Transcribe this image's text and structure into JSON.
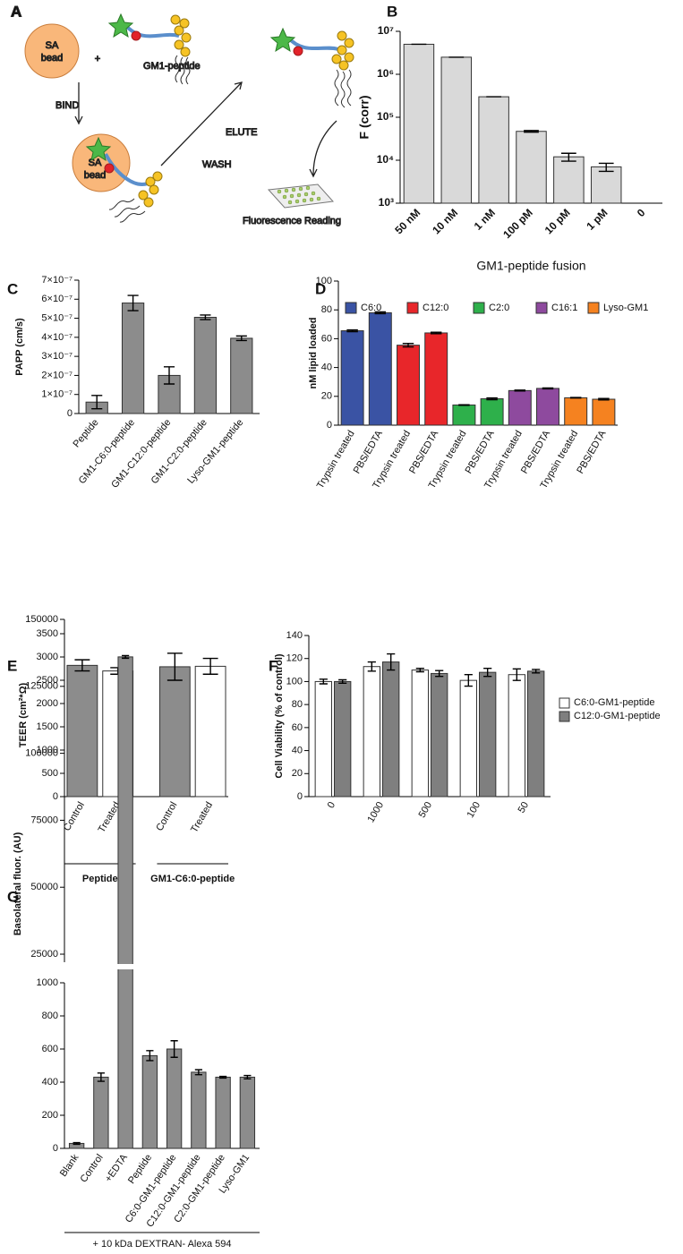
{
  "diagram": {
    "panel": "A",
    "bead_label": [
      "SA",
      "bead"
    ],
    "plus": "+",
    "fusion_label": "GM1-peptide",
    "bind": "BIND",
    "elute": "ELUTE",
    "wash": "WASH",
    "reading": "Fluorescence Reading"
  },
  "chart_data": [
    {
      "panel": "B",
      "type": "bar",
      "log_scale": true,
      "categories": [
        "50 nM",
        "10 nM",
        "1 nM",
        "100 pM",
        "10 pM",
        "1 pM",
        "0"
      ],
      "values": [
        5000000,
        2500000,
        300000,
        47000,
        12000,
        7000,
        null
      ],
      "errors": [
        0,
        0,
        0,
        2000,
        2500,
        1500,
        null
      ],
      "color": "#d9d9d9",
      "ylim": [
        1000,
        10000000
      ],
      "yticks": [
        {
          "value": 1000,
          "label": "10³"
        },
        {
          "value": 10000,
          "label": "10⁴"
        },
        {
          "value": 100000,
          "label": "10⁵"
        },
        {
          "value": 1000000,
          "label": "10⁶"
        },
        {
          "value": 10000000,
          "label": "10⁷"
        }
      ],
      "ylabel": "F (corr)",
      "xlabel": "GM1-peptide fusion"
    },
    {
      "panel": "C",
      "type": "bar",
      "categories": [
        "Peptide",
        "GM1-C6:0-peptide",
        "GM1-C12:0-peptide",
        "GM1-C2:0-peptide",
        "Lyso-GM1-peptide"
      ],
      "values": [
        6e-08,
        5.8e-07,
        2e-07,
        5.05e-07,
        3.95e-07
      ],
      "errors": [
        3.5e-08,
        4e-08,
        4.5e-08,
        1.2e-08,
        1.2e-08
      ],
      "color": "#8c8c8c",
      "ylim": [
        0,
        7e-07
      ],
      "yticks": [
        0,
        {
          "value": 1e-07,
          "label": "1×10⁻⁷"
        },
        {
          "value": 2e-07,
          "label": "2×10⁻⁷"
        },
        {
          "value": 3e-07,
          "label": "3×10⁻⁷"
        },
        {
          "value": 4e-07,
          "label": "4×10⁻⁷"
        },
        {
          "value": 5e-07,
          "label": "5×10⁻⁷"
        },
        {
          "value": 6e-07,
          "label": "6×10⁻⁷"
        },
        {
          "value": 7e-07,
          "label": "7×10⁻⁷"
        }
      ],
      "ylabel": "PAPP (cm/s)"
    },
    {
      "panel": "D",
      "type": "grouped_bar",
      "outer": "series",
      "legend": "top",
      "categories": [
        "Trypsin treated",
        "PBS/EDTA"
      ],
      "series": [
        {
          "name": "C6:0",
          "color": "#3a53a4",
          "values": [
            65.5,
            78
          ],
          "errors": [
            0.6,
            0.6
          ]
        },
        {
          "name": "C12:0",
          "color": "#e8262a",
          "values": [
            55.5,
            64
          ],
          "errors": [
            1.2,
            0.5
          ]
        },
        {
          "name": "C2:0",
          "color": "#2eb04b",
          "values": [
            14,
            18.3
          ],
          "errors": [
            0.2,
            0.6
          ]
        },
        {
          "name": "C16:1",
          "color": "#8e4a9e",
          "values": [
            24,
            25.5
          ],
          "errors": [
            0.3,
            0.3
          ]
        },
        {
          "name": "Lyso-GM1",
          "color": "#f58220",
          "values": [
            19,
            18
          ],
          "errors": [
            0.2,
            0.5
          ]
        }
      ],
      "ylim": [
        0,
        100
      ],
      "yticks": [
        0,
        20,
        40,
        60,
        80,
        100
      ],
      "ylabel": "nM lipid loaded"
    },
    {
      "panel": "E",
      "type": "grouped_bar",
      "outer": "series",
      "categories": [
        "Control",
        "Treated"
      ],
      "colors": [
        "#8c8c8c",
        "#ffffff"
      ],
      "groups": [
        "Peptide",
        "GM1-C6:0-peptide"
      ],
      "series": [
        {
          "values": [
            2820,
            2700
          ],
          "errors": [
            120,
            70
          ]
        },
        {
          "values": [
            2790,
            2800
          ],
          "errors": [
            290,
            170
          ]
        }
      ],
      "ylim": [
        0,
        3500
      ],
      "yticks": [
        0,
        500,
        1000,
        1500,
        2000,
        2500,
        3000,
        3500
      ],
      "ylabel": "TEER (cm²*Ω)"
    },
    {
      "panel": "F",
      "type": "grouped_bar",
      "outer": "categories",
      "legend": "right",
      "categories": [
        "0",
        "1000",
        "500",
        "100",
        "50"
      ],
      "series": [
        {
          "name": "C6:0-GM1-peptide",
          "color": "#ffffff",
          "values": [
            100,
            113,
            110,
            101,
            106
          ],
          "errors": [
            2,
            4,
            1.5,
            5,
            5
          ]
        },
        {
          "name": "C12:0-GM1-peptide",
          "color": "#7f7f7f",
          "values": [
            100,
            117,
            107,
            108,
            109
          ],
          "errors": [
            1.5,
            7,
            2.5,
            3.5,
            1.5
          ]
        }
      ],
      "ylim": [
        0,
        140
      ],
      "yticks": [
        0,
        20,
        40,
        60,
        80,
        100,
        120,
        140
      ],
      "ylabel": "Cell Viability (% of control)"
    },
    {
      "panel": "G",
      "type": "broken_bar",
      "categories": [
        "Blank",
        "Control",
        "+EDTA",
        "Peptide",
        "C6:0-GM1-peptide",
        "C12:0-GM1-peptide",
        "C2:0-GM1-peptide",
        "Lyso-GM1"
      ],
      "values": [
        30,
        430,
        136000,
        560,
        600,
        460,
        430,
        430
      ],
      "errors": [
        5,
        25,
        500,
        30,
        50,
        15,
        5,
        10
      ],
      "color": "#8c8c8c",
      "segments": [
        {
          "ylim": [
            0,
            1000
          ],
          "yticks": [
            0,
            200,
            400,
            600,
            800,
            1000
          ]
        },
        {
          "ylim": [
            22000,
            150000
          ],
          "yticks": [
            25000,
            50000,
            75000,
            100000,
            125000,
            150000
          ]
        }
      ],
      "ylabel": "Basolateral fluor. (AU)",
      "footer": "+ 10 kDa DEXTRAN- Alexa 594"
    }
  ]
}
